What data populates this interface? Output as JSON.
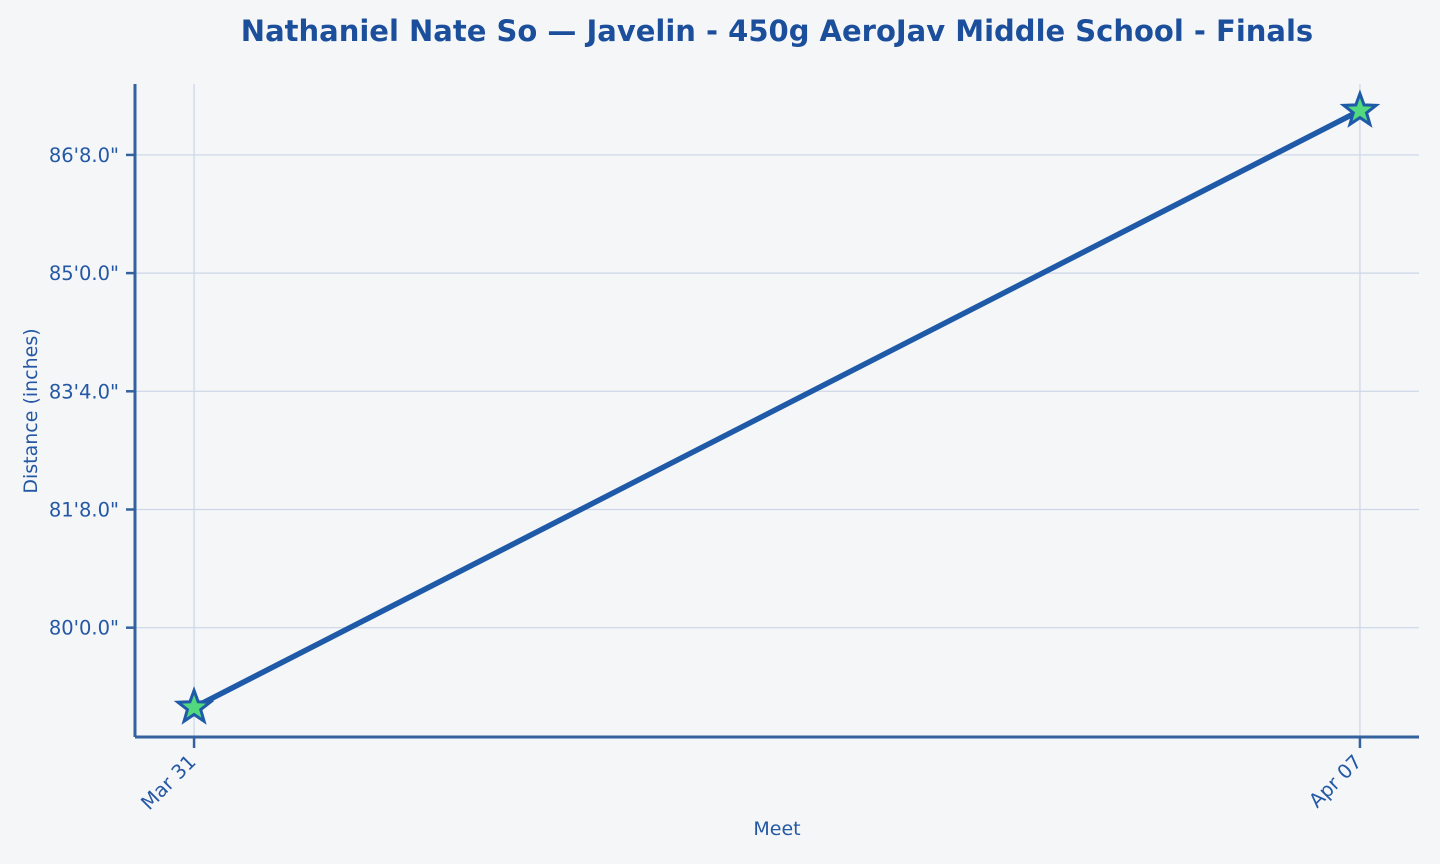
{
  "chart_data": {
    "type": "line",
    "title": "Nathaniel Nate So — Javelin - 450g AeroJav Middle School - Finals",
    "xlabel": "Meet",
    "ylabel": "Distance (inches)",
    "categories": [
      "Mar 31",
      "Apr 07"
    ],
    "series": [
      {
        "name": "Distance",
        "values_inches": [
          946.5,
          1047.5
        ],
        "values_feet_inches": [
          "78'10.5\"",
          "87'3.5\""
        ]
      }
    ],
    "yticks": [
      {
        "value": 960,
        "label": "80'0.0\""
      },
      {
        "value": 980,
        "label": "81'8.0\""
      },
      {
        "value": 1000,
        "label": "83'4.0\""
      },
      {
        "value": 1020,
        "label": "85'0.0\""
      },
      {
        "value": 1040,
        "label": "86'8.0\""
      }
    ],
    "ylim": [
      941.5,
      1052.0
    ],
    "grid": true,
    "legend": "none",
    "marker": "star",
    "xtick_rotation_deg": -45,
    "colors": {
      "background": "#f5f6f8",
      "line": "#1f5aa8",
      "marker_fill": "#52d97e",
      "marker_stroke": "#1f5aa8",
      "grid": "#ccd6e8",
      "spine": "#33629f",
      "title_text": "#1b4e9b",
      "axis_text": "#2458a4"
    }
  }
}
